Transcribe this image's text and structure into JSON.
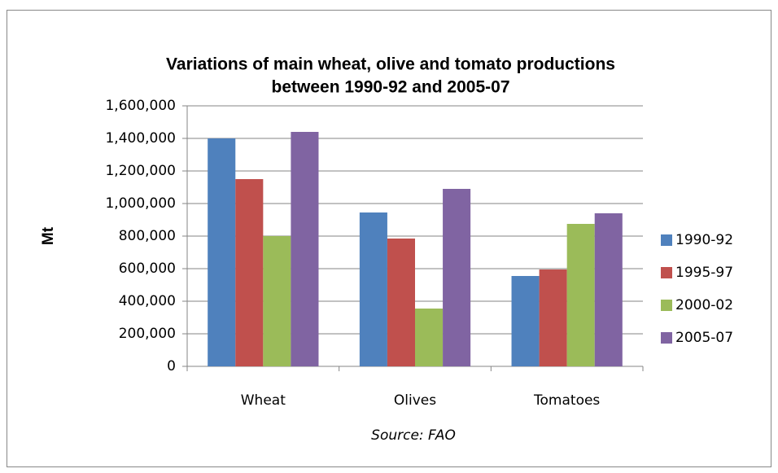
{
  "chart_data": {
    "type": "bar",
    "title": [
      "Variations of main wheat, olive and tomato productions",
      "between 1990-92 and 2005-07"
    ],
    "ylabel": "Mt",
    "source": "Source: FAO",
    "categories": [
      "Wheat",
      "Olives",
      "Tomatoes"
    ],
    "series": [
      {
        "name": "1990-92",
        "color": "#4f81bd",
        "values": [
          1400000,
          945000,
          555000
        ]
      },
      {
        "name": "1995-97",
        "color": "#c0504d",
        "values": [
          1150000,
          785000,
          595000
        ]
      },
      {
        "name": "2000-02",
        "color": "#9bbb59",
        "values": [
          800000,
          355000,
          875000
        ]
      },
      {
        "name": "2005-07",
        "color": "#8064a2",
        "values": [
          1440000,
          1090000,
          940000
        ]
      }
    ],
    "ylim": [
      0,
      1600000
    ],
    "yticks": [
      0,
      {
        "value": 200000,
        "label": "200,000"
      },
      {
        "value": 400000,
        "label": "400,000"
      },
      {
        "value": 600000,
        "label": "600,000"
      },
      {
        "value": 800000,
        "label": "800,000"
      },
      {
        "value": 1000000,
        "label": "1,000,000"
      },
      {
        "value": 1200000,
        "label": "1,200,000"
      },
      {
        "value": 1400000,
        "label": "1,400,000"
      },
      {
        "value": 1600000,
        "label": "1,600,000"
      }
    ],
    "grid": true,
    "legend": "right"
  }
}
